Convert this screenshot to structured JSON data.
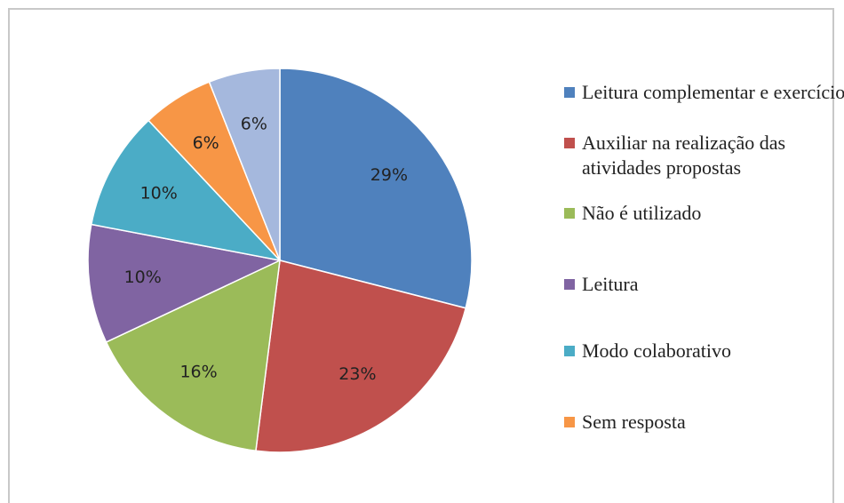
{
  "chart_data": {
    "type": "pie",
    "categories": [
      "Leitura complementar e exercício",
      "Auxiliar na realização das atividades propostas",
      "Não é utilizado",
      "Leitura",
      "Modo colaborativo",
      "Sem resposta",
      null
    ],
    "values": [
      29,
      23,
      16,
      10,
      10,
      6,
      6
    ],
    "value_labels": [
      "29%",
      "23%",
      "16%",
      "10%",
      "10%",
      "6%",
      "6%"
    ],
    "colors": [
      "#4f81bd",
      "#c0504d",
      "#9bbb59",
      "#8064a2",
      "#4bacc6",
      "#f79646",
      "#a5b8dd"
    ],
    "legend": "right"
  }
}
